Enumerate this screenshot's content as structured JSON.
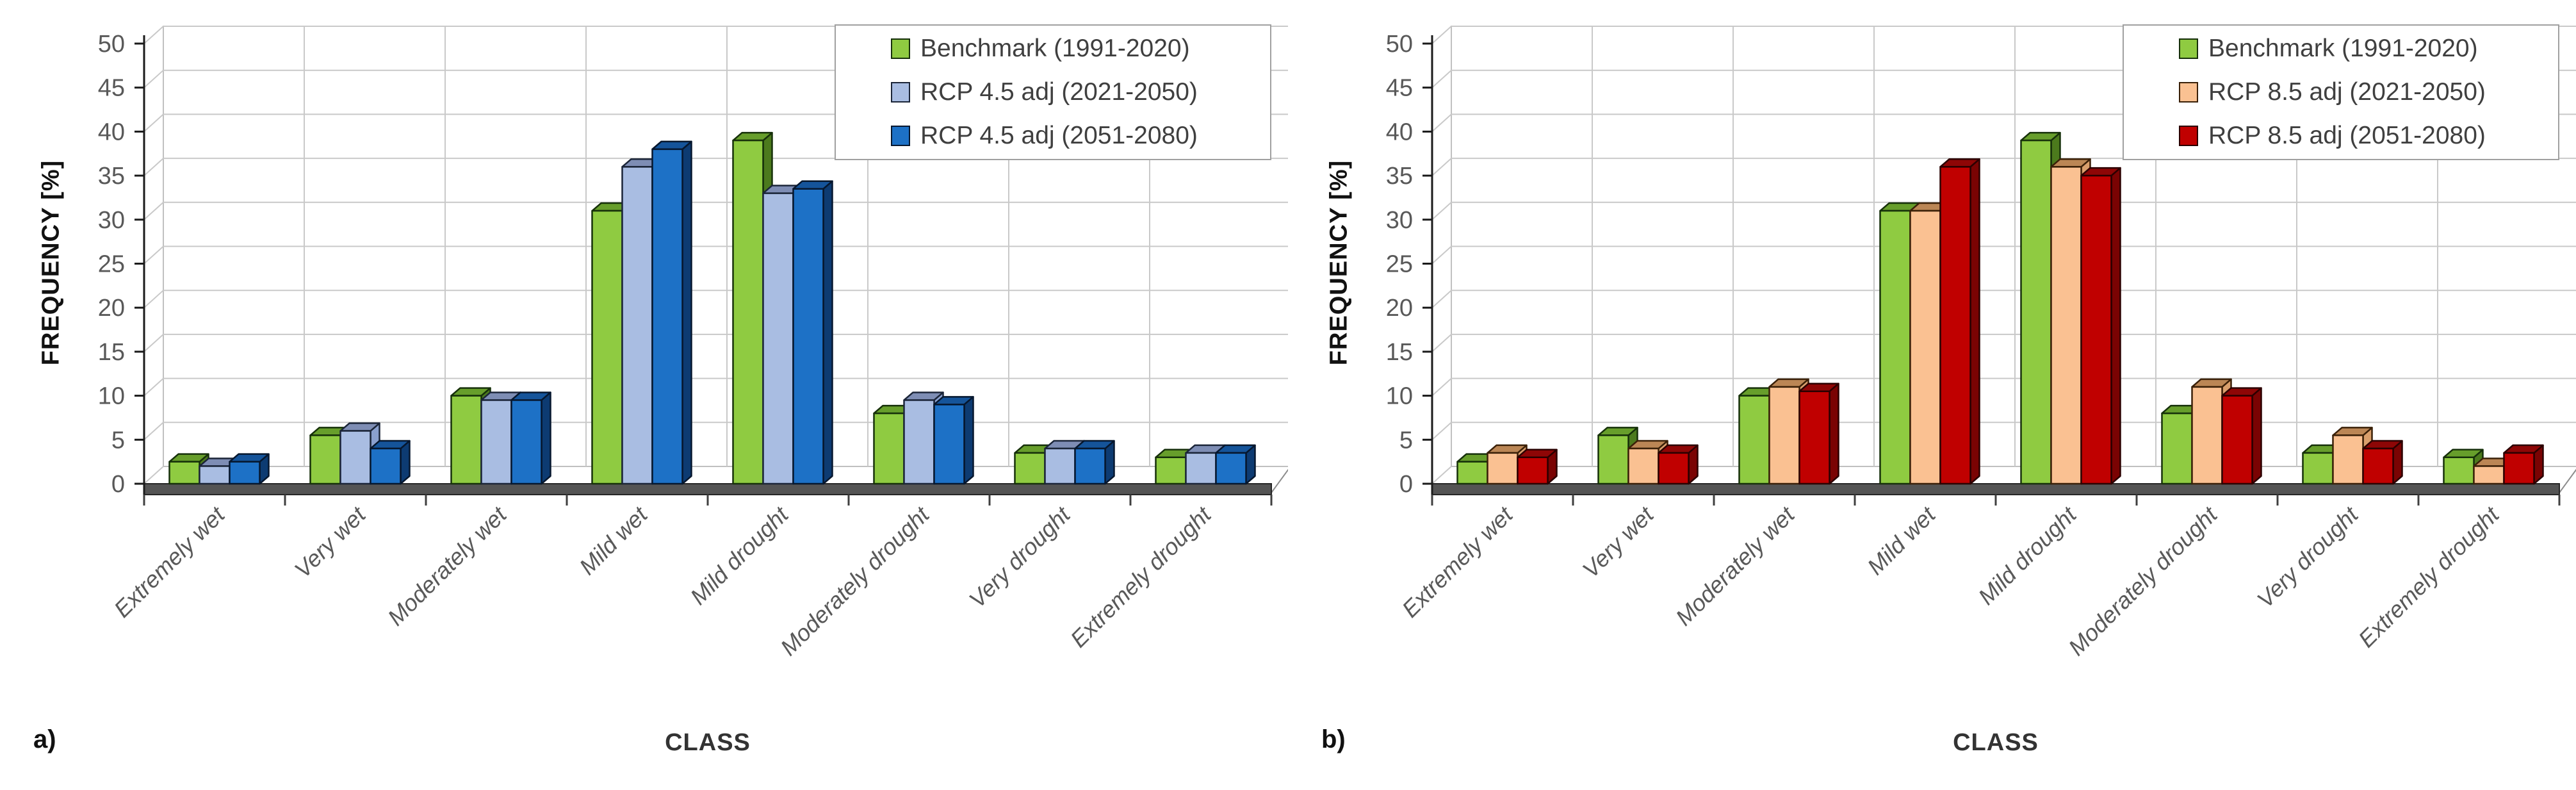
{
  "page": {
    "background": "#ffffff"
  },
  "panels": [
    {
      "panel_label": "a)",
      "ylabel": "FREQUENCY [%]",
      "xlabel": "CLASS",
      "legend_title": "",
      "legend_position": "top-right"
    },
    {
      "panel_label": "b)",
      "ylabel": "FREQUENCY [%]",
      "xlabel": "CLASS",
      "legend_title": "",
      "legend_position": "top-right"
    }
  ],
  "chart_data": [
    {
      "type": "bar",
      "style": "3d-clustered-column",
      "title": "",
      "xlabel": "CLASS",
      "ylabel": "FREQUENCY [%]",
      "ylim": [
        0,
        50
      ],
      "ytick_step": 5,
      "grid": true,
      "legend_position": "top-right",
      "categories": [
        "Extremely wet",
        "Very wet",
        "Moderately wet",
        "Mild wet",
        "Mild drought",
        "Moderately drought",
        "Very drought",
        "Extremely drought"
      ],
      "series": [
        {
          "name": "Benchmark (1991-2020)",
          "color": "#8FCB41",
          "colors": {
            "front": "#8FCB41",
            "top": "#679E2B",
            "side": "#4C7A1D",
            "stroke": "#16300A"
          },
          "values": [
            2.5,
            5.5,
            10,
            31,
            39,
            8,
            3.5,
            3
          ]
        },
        {
          "name": "RCP 4.5 adj (2021-2050)",
          "color": "#A9BDE2",
          "colors": {
            "front": "#A9BDE2",
            "top": "#7E8DB4",
            "side": "#8AA0CE",
            "stroke": "#1B2538"
          },
          "values": [
            2,
            6,
            9.5,
            36,
            33,
            9.5,
            4,
            3.5
          ]
        },
        {
          "name": "RCP 4.5 adj (2051-2080)",
          "color": "#1D71C6",
          "colors": {
            "front": "#1D71C6",
            "top": "#15549A",
            "side": "#0D3B72",
            "stroke": "#06172E"
          },
          "values": [
            2.5,
            4,
            9.5,
            38,
            33.5,
            9,
            4,
            3.5
          ]
        }
      ]
    },
    {
      "type": "bar",
      "style": "3d-clustered-column",
      "title": "",
      "xlabel": "CLASS",
      "ylabel": "FREQUENCY [%]",
      "ylim": [
        0,
        50
      ],
      "ytick_step": 5,
      "grid": true,
      "legend_position": "top-right",
      "categories": [
        "Extremely wet",
        "Very wet",
        "Moderately wet",
        "Mild wet",
        "Mild drought",
        "Moderately drought",
        "Very drought",
        "Extremely drought"
      ],
      "series": [
        {
          "name": "Benchmark (1991-2020)",
          "color": "#8FCB41",
          "colors": {
            "front": "#8FCB41",
            "top": "#679E2B",
            "side": "#4C7A1D",
            "stroke": "#16300A"
          },
          "values": [
            2.5,
            5.5,
            10,
            31,
            39,
            8,
            3.5,
            3
          ]
        },
        {
          "name": "RCP 8.5 adj (2021-2050)",
          "color": "#FAC192",
          "colors": {
            "front": "#FAC192",
            "top": "#BB8655",
            "side": "#D99F6C",
            "stroke": "#3A2008"
          },
          "values": [
            3.5,
            4,
            11,
            31,
            36,
            11,
            5.5,
            2
          ]
        },
        {
          "name": "RCP 8.5 adj (2051-2080)",
          "color": "#C00000",
          "colors": {
            "front": "#C00000",
            "top": "#8E0606",
            "side": "#7A0303",
            "stroke": "#2B0000"
          },
          "values": [
            3,
            3.5,
            10.5,
            36,
            35,
            10,
            4,
            3.5
          ]
        }
      ]
    }
  ],
  "axis_style": {
    "gridline_color": "#C9C9C9",
    "wall_border_color": "#C0C0C0",
    "axis_color": "#1A1A1A",
    "tick_label_color": "#595959",
    "category_label_color": "#595959",
    "floor_color": "#545454"
  }
}
